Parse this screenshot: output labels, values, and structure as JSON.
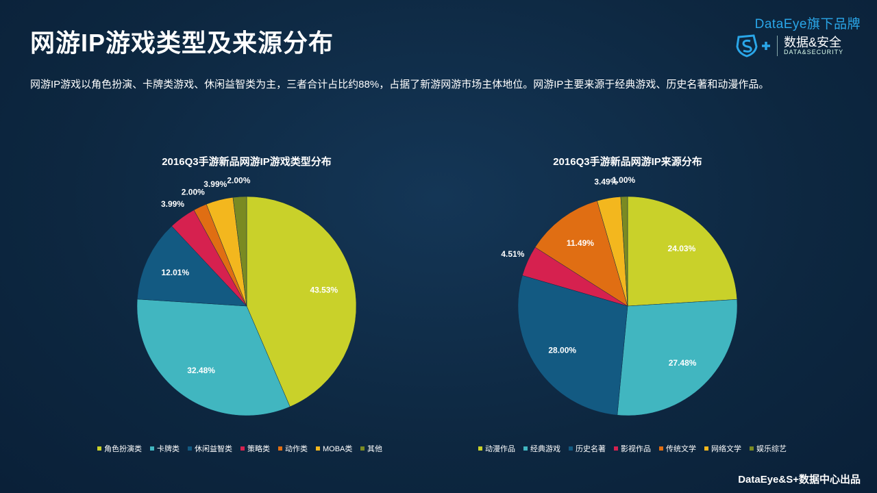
{
  "page": {
    "title": "网游IP游戏类型及来源分布",
    "description": "网游IP游戏以角色扮演、卡牌类游戏、休闲益智类为主，三者合计占比约88%，占据了新游网游市场主体地位。网游IP主要来源于经典游戏、历史名著和动漫作品。",
    "footer": "DataEye&S+数据中心出品"
  },
  "brand": {
    "top_text": "DataEye旗下品牌",
    "name_cn": "数据&安全",
    "name_en": "DATA&SECURITY",
    "logo_icon": "s-plus-shield-icon",
    "accent_color": "#2aa6e8"
  },
  "chart_data": [
    {
      "type": "pie",
      "title": "2016Q3手游新品网游IP游戏类型分布",
      "categories": [
        "角色扮演类",
        "卡牌类",
        "休闲益智类",
        "策略类",
        "动作类",
        "MOBA类",
        "其他"
      ],
      "values": [
        43.53,
        32.48,
        12.01,
        3.99,
        2.0,
        3.99,
        2.0
      ],
      "labels": [
        "43.53%",
        "32.48%",
        "12.01%",
        "3.99%",
        "2.00%",
        "3.99%",
        "2.00%"
      ],
      "colors": [
        "#c9d12a",
        "#41b6c0",
        "#135a82",
        "#d6214f",
        "#e06e13",
        "#f3b71e",
        "#7a8a22"
      ],
      "legend_position": "bottom"
    },
    {
      "type": "pie",
      "title": "2016Q3手游新品网游IP来源分布",
      "categories": [
        "动漫作品",
        "经典游戏",
        "历史名著",
        "影视作品",
        "传统文学",
        "网络文学",
        "娱乐综艺"
      ],
      "values": [
        24.03,
        27.48,
        28.0,
        4.51,
        11.49,
        3.49,
        1.0
      ],
      "labels": [
        "24.03%",
        "27.48%",
        "28.00%",
        "4.51%",
        "11.49%",
        "3.49%",
        "1.00%"
      ],
      "colors": [
        "#c9d12a",
        "#41b6c0",
        "#135a82",
        "#d6214f",
        "#e06e13",
        "#f3b71e",
        "#7a8a22"
      ],
      "legend_position": "bottom"
    }
  ]
}
